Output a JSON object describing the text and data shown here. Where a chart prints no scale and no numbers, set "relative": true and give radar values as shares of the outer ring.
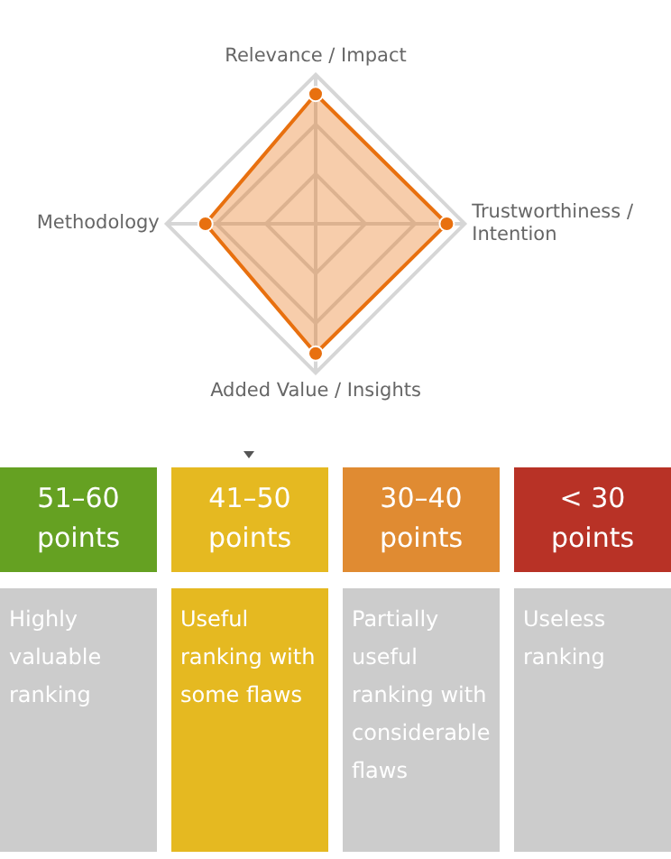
{
  "chart_data": [
    {
      "type": "radar",
      "relative": true,
      "grid": true,
      "marker": "circle",
      "categories": [
        "Relevance / Impact",
        "Trustworthiness / Intention",
        "Added Value / Insights",
        "Methodology"
      ],
      "series": [
        {
          "color": "#e8700f",
          "values": [
            0.87,
            0.88,
            0.87,
            0.74
          ]
        }
      ]
    },
    {
      "type": "other",
      "categories": [
        "51–60 points",
        "41–50 points",
        "30–40 points",
        "< 30 points"
      ],
      "colors": [
        "#65a122",
        "#e5b921",
        "#e08b32",
        "#b83226",
        "#cccccc",
        "#e5b921",
        "#cccccc",
        "#cccccc"
      ],
      "annotations": [
        "Highly valuable ranking",
        "Useful ranking with some flaws",
        "Partially useful ranking with considerable flaws",
        "Useless ranking"
      ]
    }
  ]
}
